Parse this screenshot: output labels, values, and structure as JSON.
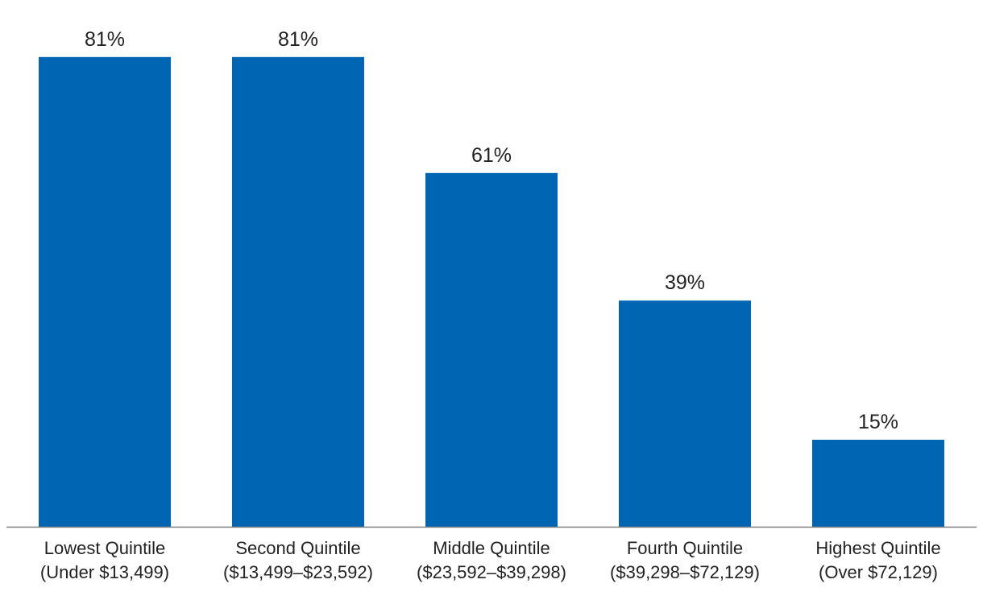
{
  "chart_data": {
    "type": "bar",
    "title": "",
    "xlabel": "",
    "ylabel": "",
    "categories": [
      {
        "line1": "Lowest Quintile",
        "line2": "(Under $13,499)"
      },
      {
        "line1": "Second Quintile",
        "line2": "($13,499–$23,592)"
      },
      {
        "line1": "Middle Quintile",
        "line2": "($23,592–$39,298)"
      },
      {
        "line1": "Fourth Quintile",
        "line2": "($39,298–$72,129)"
      },
      {
        "line1": "Highest Quintile",
        "line2": "(Over $72,129)"
      }
    ],
    "values": [
      81,
      81,
      61,
      39,
      15
    ],
    "value_labels": [
      "81%",
      "81%",
      "61%",
      "39%",
      "15%"
    ],
    "ylim": [
      0,
      100
    ],
    "grid": false,
    "legend": "none",
    "colors": {
      "bar": "#0066b3",
      "axis": "#7f7f7f",
      "text": "#222222"
    }
  }
}
